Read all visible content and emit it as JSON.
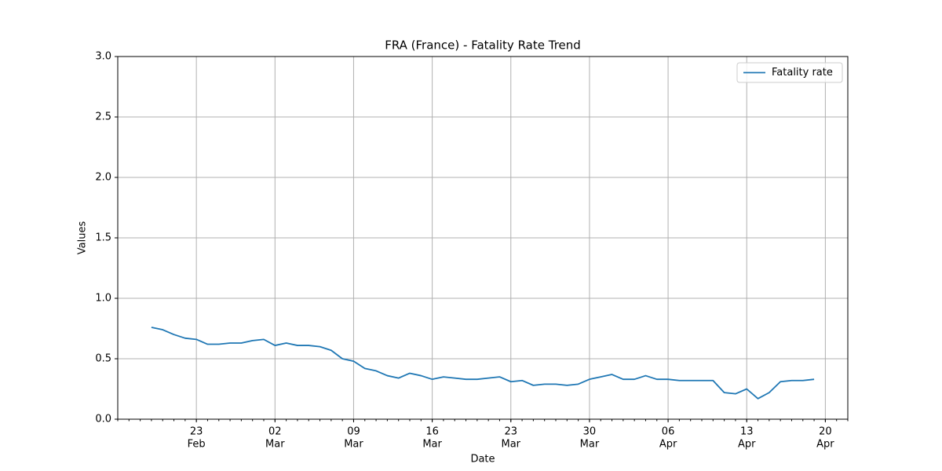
{
  "chart_data": {
    "type": "line",
    "title": "FRA (France) - Fatality Rate Trend",
    "xlabel": "Date",
    "ylabel": "Values",
    "x": [
      "02-19",
      "02-20",
      "02-21",
      "02-22",
      "02-23",
      "02-24",
      "02-25",
      "02-26",
      "02-27",
      "02-28",
      "03-01",
      "03-02",
      "03-03",
      "03-04",
      "03-05",
      "03-06",
      "03-07",
      "03-08",
      "03-09",
      "03-10",
      "03-11",
      "03-12",
      "03-13",
      "03-14",
      "03-15",
      "03-16",
      "03-17",
      "03-18",
      "03-19",
      "03-20",
      "03-21",
      "03-22",
      "03-23",
      "03-24",
      "03-25",
      "03-26",
      "03-27",
      "03-28",
      "03-29",
      "03-30",
      "03-31",
      "04-01",
      "04-02",
      "04-03",
      "04-04",
      "04-05",
      "04-06",
      "04-07",
      "04-08",
      "04-09",
      "04-10",
      "04-11",
      "04-12",
      "04-13",
      "04-14",
      "04-15",
      "04-16",
      "04-17",
      "04-18",
      "04-19"
    ],
    "series": [
      {
        "name": "Fatality rate",
        "color": "#1f77b4",
        "values": [
          0.76,
          0.74,
          0.7,
          0.67,
          0.66,
          0.62,
          0.62,
          0.63,
          0.63,
          0.65,
          0.66,
          0.61,
          0.63,
          0.61,
          0.61,
          0.6,
          0.57,
          0.5,
          0.48,
          0.42,
          0.4,
          0.36,
          0.34,
          0.38,
          0.36,
          0.33,
          0.35,
          0.34,
          0.33,
          0.33,
          0.34,
          0.35,
          0.31,
          0.32,
          0.28,
          0.29,
          0.29,
          0.28,
          0.29,
          0.33,
          0.35,
          0.37,
          0.33,
          0.33,
          0.36,
          0.33,
          0.33,
          0.32,
          0.32,
          0.32,
          0.32,
          0.22,
          0.21,
          0.25,
          0.17,
          0.22,
          0.31,
          0.32,
          0.32,
          0.33
        ]
      }
    ],
    "xlim": [
      "02-16",
      "04-22"
    ],
    "xticks": [
      {
        "value": "02-23",
        "label": [
          "23",
          "Feb"
        ]
      },
      {
        "value": "03-02",
        "label": [
          "02",
          "Mar"
        ]
      },
      {
        "value": "03-09",
        "label": [
          "09",
          "Mar"
        ]
      },
      {
        "value": "03-16",
        "label": [
          "16",
          "Mar"
        ]
      },
      {
        "value": "03-23",
        "label": [
          "23",
          "Mar"
        ]
      },
      {
        "value": "03-30",
        "label": [
          "30",
          "Mar"
        ]
      },
      {
        "value": "04-06",
        "label": [
          "06",
          "Apr"
        ]
      },
      {
        "value": "04-13",
        "label": [
          "13",
          "Apr"
        ]
      },
      {
        "value": "04-20",
        "label": [
          "20",
          "Apr"
        ]
      }
    ],
    "ylim": [
      0,
      3
    ],
    "yticks": [
      {
        "value": 0,
        "label": "0.0"
      },
      {
        "value": 0.5,
        "label": "0.5"
      },
      {
        "value": 1,
        "label": "1.0"
      },
      {
        "value": 1.5,
        "label": "1.5"
      },
      {
        "value": 2,
        "label": "2.0"
      },
      {
        "value": 2.5,
        "label": "2.5"
      },
      {
        "value": 3,
        "label": "3.0"
      }
    ],
    "grid": true,
    "legend": "upper right"
  }
}
